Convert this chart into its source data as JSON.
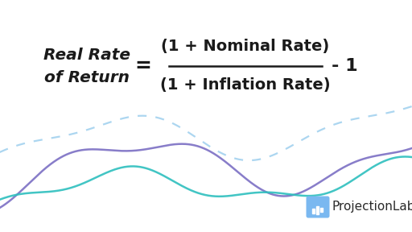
{
  "bg_color": "#ffffff",
  "left_label_line1": "Real Rate",
  "left_label_line2": "of Return",
  "equals": "=",
  "numerator": "(1 + Nominal Rate)",
  "denominator": "(1 + Inflation Rate)",
  "minus_one": "- 1",
  "brand_name": "ProjectionLab",
  "brand_icon_color_top": "#6ec6f5",
  "brand_icon_color_bot": "#7b6fc4",
  "curve1_color": "#7b6fc4",
  "curve2_color": "#2dbfbe",
  "curve_dashed_color": "#9ecfee",
  "text_color": "#1a1a1a",
  "fraction_line_color": "#1a1a1a",
  "fig_w": 5.12,
  "fig_h": 2.88,
  "dpi": 100
}
